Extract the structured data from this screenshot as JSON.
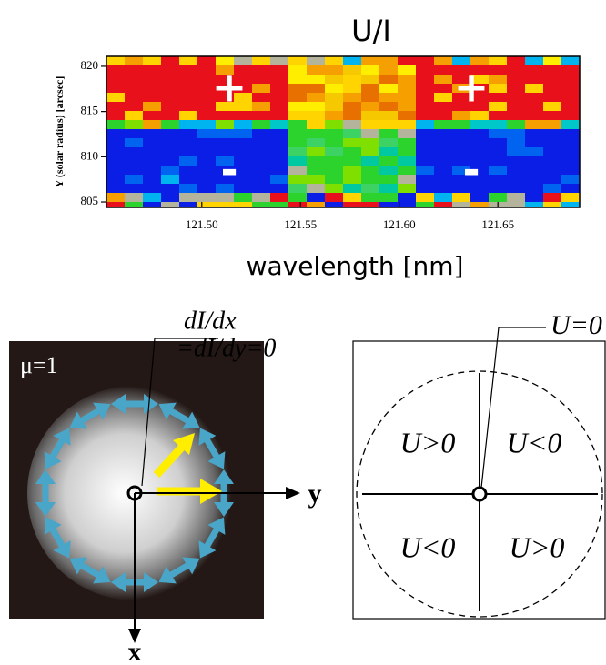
{
  "top_panel": {
    "title": "U/I",
    "x_label": "wavelength [nm]",
    "y_label": "Y (solar radius) [arcsec]",
    "xlim": [
      121.4517,
      121.6914
    ],
    "ylim": [
      804.4,
      821.1
    ],
    "xticks": [
      {
        "value": 121.5,
        "label": "121.50"
      },
      {
        "value": 121.55,
        "label": "121.55"
      },
      {
        "value": 121.6,
        "label": "121.60"
      },
      {
        "value": 121.65,
        "label": "121.65"
      }
    ],
    "yticks": [
      805,
      810,
      815,
      820
    ],
    "signs": [
      "+",
      "+",
      "-",
      "-"
    ]
  },
  "left_diagram": {
    "mu_label": "μ=1",
    "derivative_label": [
      "dI/dx",
      "=dI/dy=0"
    ],
    "axis_y": "y",
    "axis_x": "x"
  },
  "right_diagram": {
    "zero_label": "U=0",
    "quadrants": [
      "U>0",
      "U<0",
      "U<0",
      "U>0"
    ]
  }
}
